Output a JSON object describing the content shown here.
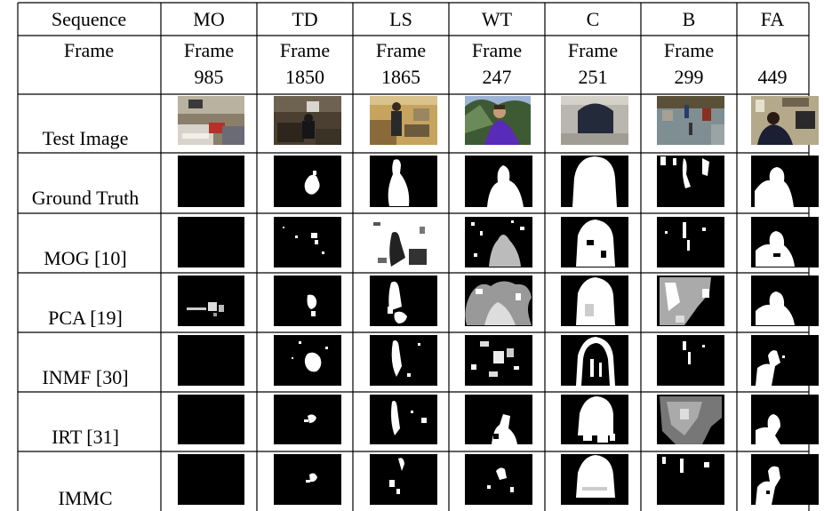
{
  "table": {
    "headers": [
      "Sequence",
      "MO",
      "TD",
      "LS",
      "WT",
      "C",
      "B",
      "FA"
    ],
    "frame_label": "Frame",
    "frame_row": [
      {
        "top": "Frame",
        "num": "985"
      },
      {
        "top": "Frame",
        "num": "1850"
      },
      {
        "top": "Frame",
        "num": "1865"
      },
      {
        "top": "Frame",
        "num": "247"
      },
      {
        "top": "Frame",
        "num": "251"
      },
      {
        "top": "Frame",
        "num": "299"
      },
      {
        "top": "",
        "num": "449"
      }
    ],
    "rows": [
      {
        "label": "Test Image",
        "kind": "photo"
      },
      {
        "label": "Ground Truth",
        "kind": "mask"
      },
      {
        "label": "MOG [10]",
        "kind": "mask"
      },
      {
        "label": "PCA [19]",
        "kind": "mask"
      },
      {
        "label": "INMF [30]",
        "kind": "mask"
      },
      {
        "label": "IRT [31]",
        "kind": "mask"
      },
      {
        "label": "IMMC",
        "kind": "mask"
      }
    ]
  },
  "colors": {
    "mask_bg": "#000000",
    "mask_fg": "#ffffff",
    "grid": "#000000"
  }
}
